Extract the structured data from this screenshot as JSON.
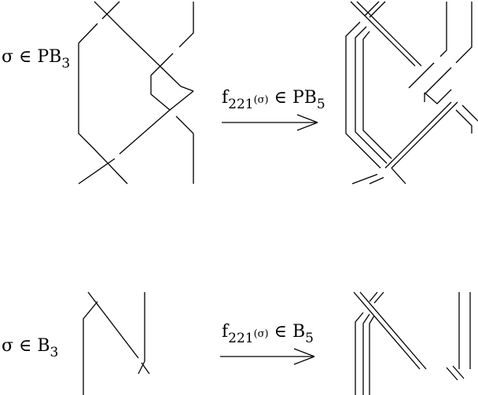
{
  "top": {
    "left_label": {
      "sym": "σ",
      "rel": "∈",
      "base": "PB",
      "sub": "3"
    },
    "arrow_label": {
      "f": "f",
      "idx": "221",
      "arg": "(σ)",
      "rel": "∈",
      "base": "PB",
      "sub": "5"
    }
  },
  "bottom": {
    "left_label": {
      "sym": "σ",
      "rel": "∈",
      "base": "B",
      "sub": "3"
    },
    "arrow_label": {
      "f": "f",
      "idx": "221",
      "arg": "(σ)",
      "rel": "∈",
      "base": "B",
      "sub": "5"
    }
  },
  "colors": {
    "ink": "#000000",
    "background": "#ffffff"
  }
}
